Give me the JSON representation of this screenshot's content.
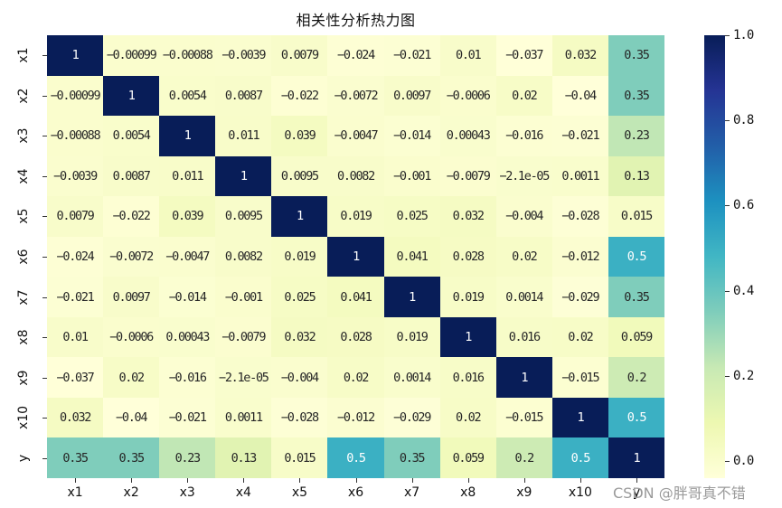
{
  "chart_data": {
    "type": "heatmap",
    "title": "相关性分析热力图",
    "xlabel": "",
    "ylabel": "",
    "categories": [
      "x1",
      "x2",
      "x3",
      "x4",
      "x5",
      "x6",
      "x7",
      "x8",
      "x9",
      "x10",
      "y"
    ],
    "row_labels": [
      "x1",
      "x2",
      "x3",
      "x4",
      "x5",
      "x6",
      "x7",
      "x8",
      "x9",
      "x10",
      "y"
    ],
    "col_labels": [
      "x1",
      "x2",
      "x3",
      "x4",
      "x5",
      "x6",
      "x7",
      "x8",
      "x9",
      "x10",
      "y"
    ],
    "values": [
      [
        "1",
        "-0.00099",
        "-0.00088",
        "-0.0039",
        "0.0079",
        "-0.024",
        "-0.021",
        "0.01",
        "-0.037",
        "0.032",
        "0.35"
      ],
      [
        "-0.00099",
        "1",
        "0.0054",
        "0.0087",
        "-0.022",
        "-0.0072",
        "0.0097",
        "-0.0006",
        "0.02",
        "-0.04",
        "0.35"
      ],
      [
        "-0.00088",
        "0.0054",
        "1",
        "0.011",
        "0.039",
        "-0.0047",
        "-0.014",
        "0.00043",
        "-0.016",
        "-0.021",
        "0.23"
      ],
      [
        "-0.0039",
        "0.0087",
        "0.011",
        "1",
        "0.0095",
        "0.0082",
        "-0.001",
        "-0.0079",
        "-2.1e-05",
        "0.0011",
        "0.13"
      ],
      [
        "0.0079",
        "-0.022",
        "0.039",
        "0.0095",
        "1",
        "0.019",
        "0.025",
        "0.032",
        "-0.004",
        "-0.028",
        "0.015"
      ],
      [
        "-0.024",
        "-0.0072",
        "-0.0047",
        "0.0082",
        "0.019",
        "1",
        "0.041",
        "0.028",
        "0.02",
        "-0.012",
        "0.5"
      ],
      [
        "-0.021",
        "0.0097",
        "-0.014",
        "-0.001",
        "0.025",
        "0.041",
        "1",
        "0.019",
        "0.0014",
        "-0.029",
        "0.35"
      ],
      [
        "0.01",
        "-0.0006",
        "0.00043",
        "-0.0079",
        "0.032",
        "0.028",
        "0.019",
        "1",
        "0.016",
        "0.02",
        "0.059"
      ],
      [
        "-0.037",
        "0.02",
        "-0.016",
        "-2.1e-05",
        "-0.004",
        "0.02",
        "0.0014",
        "0.016",
        "1",
        "-0.015",
        "0.2"
      ],
      [
        "0.032",
        "-0.04",
        "-0.021",
        "0.0011",
        "-0.028",
        "-0.012",
        "-0.029",
        "0.02",
        "-0.015",
        "1",
        "0.5"
      ],
      [
        "0.35",
        "0.35",
        "0.23",
        "0.13",
        "0.015",
        "0.5",
        "0.35",
        "0.059",
        "0.2",
        "0.5",
        "1"
      ]
    ],
    "colormap": "YlGnBu",
    "colorbar": {
      "vmin": -0.04,
      "vmax": 1.0,
      "ticks": [
        "0.0",
        "0.2",
        "0.4",
        "0.6",
        "0.8",
        "1.0"
      ],
      "tick_values": [
        0.0,
        0.2,
        0.4,
        0.6,
        0.8,
        1.0
      ]
    },
    "annotations": true,
    "grid": false,
    "legend_position": "right"
  },
  "colors": {
    "palette_stops": [
      "#ffffd9",
      "#edf8b1",
      "#c7e9b4",
      "#7fcdbb",
      "#41b6c4",
      "#1d91c0",
      "#225ea8",
      "#253494",
      "#081d58"
    ],
    "text_dark": "#262626",
    "text_light": "#ffffff"
  },
  "watermark": "CSDN @胖哥真不错"
}
